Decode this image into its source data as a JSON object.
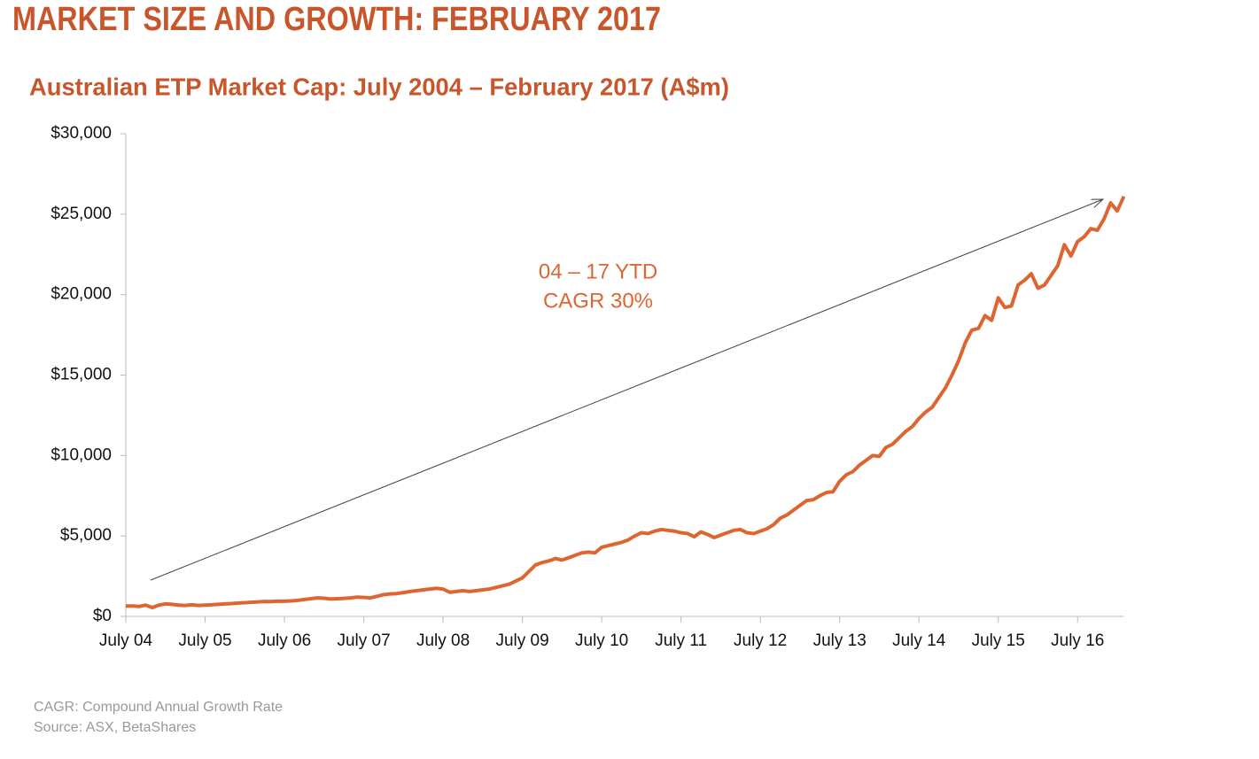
{
  "page_title": "MARKET SIZE AND GROWTH: FEBRUARY 2017",
  "chart_data": {
    "type": "line",
    "title": "Australian ETP Market Cap: July 2004 – February 2017 (A$m)",
    "annotation": [
      "04 – 17 YTD",
      "CAGR 30%"
    ],
    "footnotes": [
      "CAGR: Compound Annual Growth Rate",
      "Source: ASX, BetaShares"
    ],
    "categories": [
      "July 04",
      null,
      null,
      null,
      null,
      null,
      null,
      null,
      null,
      null,
      null,
      null,
      "July 05",
      null,
      null,
      null,
      null,
      null,
      null,
      null,
      null,
      null,
      null,
      null,
      "July 06",
      null,
      null,
      null,
      null,
      null,
      null,
      null,
      null,
      null,
      null,
      null,
      "July 07",
      null,
      null,
      null,
      null,
      null,
      null,
      null,
      null,
      null,
      null,
      null,
      "July 08",
      null,
      null,
      null,
      null,
      null,
      null,
      null,
      null,
      null,
      null,
      null,
      "July 09",
      null,
      null,
      null,
      null,
      null,
      null,
      null,
      null,
      null,
      null,
      null,
      "July 10",
      null,
      null,
      null,
      null,
      null,
      null,
      null,
      null,
      null,
      null,
      null,
      "July 11",
      null,
      null,
      null,
      null,
      null,
      null,
      null,
      null,
      null,
      null,
      null,
      "July 12",
      null,
      null,
      null,
      null,
      null,
      null,
      null,
      null,
      null,
      null,
      null,
      "July 13",
      null,
      null,
      null,
      null,
      null,
      null,
      null,
      null,
      null,
      null,
      null,
      "July 14",
      null,
      null,
      null,
      null,
      null,
      null,
      null,
      null,
      null,
      null,
      null,
      "July 15",
      null,
      null,
      null,
      null,
      null,
      null,
      null,
      null,
      null,
      null,
      null,
      "July 16",
      null,
      null,
      null,
      null,
      null,
      null,
      null
    ],
    "series": [
      {
        "name": "Australian ETP Market Cap",
        "color": "#dd6630",
        "values": [
          650,
          650,
          620,
          700,
          550,
          700,
          780,
          750,
          700,
          680,
          720,
          680,
          700,
          720,
          750,
          780,
          800,
          830,
          850,
          880,
          900,
          930,
          920,
          950,
          940,
          960,
          1000,
          1050,
          1100,
          1150,
          1130,
          1080,
          1100,
          1120,
          1150,
          1200,
          1180,
          1150,
          1250,
          1350,
          1400,
          1420,
          1480,
          1550,
          1600,
          1650,
          1700,
          1750,
          1700,
          1500,
          1550,
          1600,
          1550,
          1600,
          1650,
          1700,
          1800,
          1900,
          2000,
          2200,
          2400,
          2800,
          3200,
          3350,
          3450,
          3600,
          3500,
          3650,
          3800,
          3950,
          4000,
          3950,
          4300,
          4400,
          4500,
          4600,
          4750,
          5000,
          5200,
          5150,
          5300,
          5400,
          5350,
          5300,
          5200,
          5150,
          4950,
          5250,
          5100,
          4900,
          5050,
          5200,
          5350,
          5400,
          5200,
          5150,
          5300,
          5450,
          5700,
          6100,
          6300,
          6600,
          6900,
          7200,
          7250,
          7500,
          7700,
          7750,
          8400,
          8800,
          9000,
          9400,
          9700,
          10000,
          9950,
          10500,
          10700,
          11100,
          11500,
          11800,
          12300,
          12700,
          13000,
          13600,
          14200,
          15000,
          15900,
          17000,
          17800,
          17900,
          18700,
          18400,
          19800,
          19200,
          19300,
          20600,
          20900,
          21300,
          20400,
          20600,
          21200,
          21800,
          23100,
          22400,
          23300,
          23600,
          24100,
          24000,
          24700,
          25700,
          25200,
          26100
        ]
      }
    ],
    "ylim": [
      0,
      30000
    ],
    "yticks": [
      {
        "value": 0,
        "label": "$0"
      },
      {
        "value": 5000,
        "label": "$5,000"
      },
      {
        "value": 10000,
        "label": "$10,000"
      },
      {
        "value": 15000,
        "label": "$15,000"
      },
      {
        "value": 20000,
        "label": "$20,000"
      },
      {
        "value": 25000,
        "label": "$25,000"
      },
      {
        "value": 30000,
        "label": "$30,000"
      }
    ],
    "grid": false
  }
}
